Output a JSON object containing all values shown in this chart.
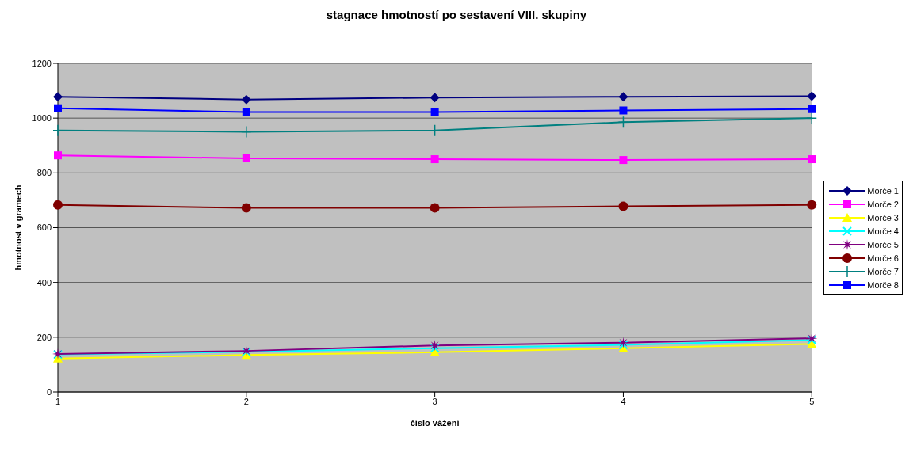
{
  "chart_data": {
    "type": "line",
    "title": "stagnace hmotností po sestavení VIII. skupiny",
    "xlabel": "číslo vážení",
    "ylabel": "hmotnost v gramech",
    "categories": [
      "1",
      "2",
      "3",
      "4",
      "5"
    ],
    "series": [
      {
        "name": "Morče 1",
        "color": "#000080",
        "marker": "diamond",
        "values": [
          1078,
          1068,
          1075,
          1078,
          1080
        ]
      },
      {
        "name": "Morče 2",
        "color": "#ff00ff",
        "marker": "square",
        "values": [
          864,
          853,
          850,
          847,
          850
        ]
      },
      {
        "name": "Morče 3",
        "color": "#ffff00",
        "marker": "triangle",
        "values": [
          122,
          135,
          145,
          160,
          175
        ]
      },
      {
        "name": "Morče 4",
        "color": "#00ffff",
        "marker": "x",
        "values": [
          137,
          147,
          160,
          172,
          190
        ]
      },
      {
        "name": "Morče 5",
        "color": "#800080",
        "marker": "star",
        "values": [
          139,
          150,
          170,
          180,
          196
        ]
      },
      {
        "name": "Morče 6",
        "color": "#800000",
        "marker": "circle",
        "values": [
          683,
          672,
          672,
          678,
          683
        ]
      },
      {
        "name": "Morče 7",
        "color": "#008080",
        "marker": "cross",
        "values": [
          955,
          950,
          955,
          985,
          1000
        ]
      },
      {
        "name": "Morče 8",
        "color": "#0000ff",
        "marker": "square",
        "values": [
          1036,
          1022,
          1022,
          1028,
          1033
        ]
      }
    ],
    "ylim": [
      0,
      1200
    ],
    "yticks": [
      0,
      200,
      400,
      600,
      800,
      1000,
      1200
    ],
    "grid": "y",
    "legend": "right"
  }
}
